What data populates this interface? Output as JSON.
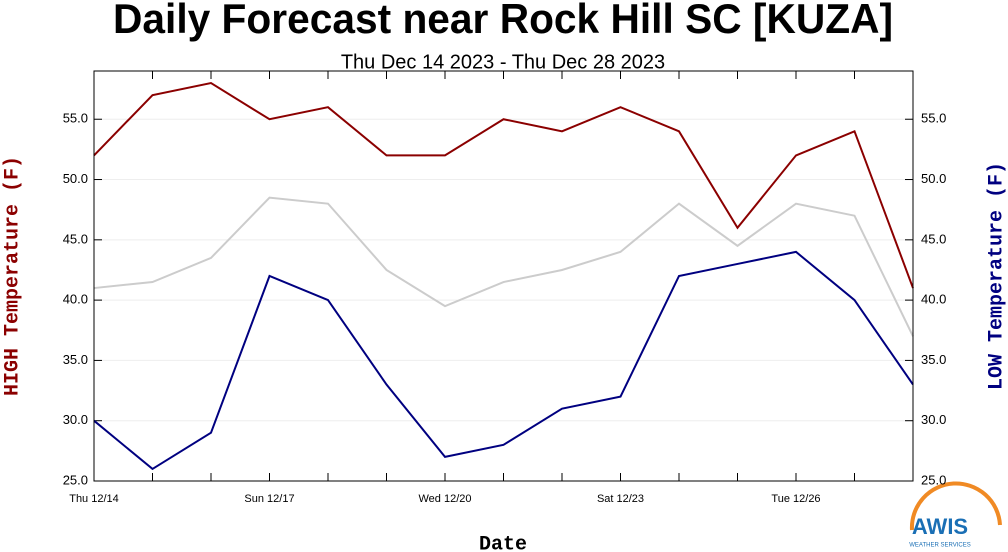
{
  "chart_data": {
    "type": "line",
    "title": "Daily Forecast near Rock Hill SC [KUZA]",
    "subtitle": "Thu Dec 14 2023 - Thu Dec 28 2023",
    "x_label": "Date",
    "y_label": "HIGH Temperature (F)",
    "y2_label": "LOW Temperature (F)",
    "categories": [
      "Thu 12/14",
      null,
      null,
      "Sun 12/17",
      null,
      null,
      "Wed 12/20",
      null,
      null,
      "Sat 12/23",
      null,
      null,
      "Tue 12/26",
      null,
      null
    ],
    "series": [
      {
        "name": "HIGH Temperature (F)",
        "color": "#8b0000",
        "values": [
          52,
          57,
          58,
          55,
          56,
          52,
          52,
          55,
          54,
          56,
          54,
          46,
          52,
          54,
          41
        ]
      },
      {
        "color": "#cccccc",
        "values": [
          41,
          41.5,
          43.5,
          48.5,
          48,
          42.5,
          39.5,
          41.5,
          42.5,
          44,
          48,
          44.5,
          48,
          47,
          37
        ]
      },
      {
        "name": "LOW Temperature (F)",
        "color": "#000080",
        "axis": "y2",
        "values": [
          30,
          26,
          29,
          42,
          40,
          33,
          27,
          28,
          31,
          32,
          42,
          43,
          44,
          40,
          33
        ]
      }
    ],
    "ylim": [
      25,
      59
    ],
    "yticks": [
      {
        "value": 25,
        "label": "25.0"
      },
      {
        "value": 30,
        "label": "30.0"
      },
      {
        "value": 35,
        "label": "35.0"
      },
      {
        "value": 40,
        "label": "40.0"
      },
      {
        "value": 45,
        "label": "45.0"
      },
      {
        "value": 50,
        "label": "50.0"
      },
      {
        "value": 55,
        "label": "55.0"
      }
    ],
    "y2lim": [
      25,
      59
    ],
    "y2ticks": [
      {
        "value": 25,
        "label": "25.0"
      },
      {
        "value": 30,
        "label": "30.0"
      },
      {
        "value": 35,
        "label": "35.0"
      },
      {
        "value": 40,
        "label": "40.0"
      },
      {
        "value": 45,
        "label": "45.0"
      },
      {
        "value": 50,
        "label": "50.0"
      },
      {
        "value": 55,
        "label": "55.0"
      }
    ],
    "grid": true
  },
  "logo": {
    "name": "AWIS",
    "tagline": "WEATHER SERVICES"
  }
}
